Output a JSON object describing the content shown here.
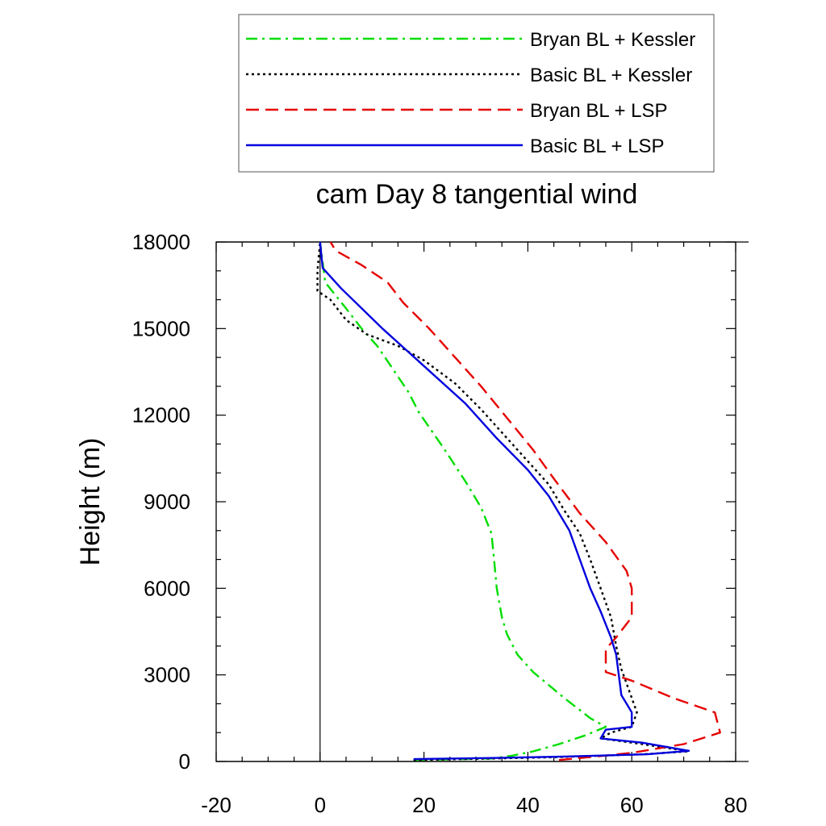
{
  "chart_data": {
    "type": "line",
    "title": "cam Day 8 tangential wind",
    "xlabel": "",
    "ylabel": "Height (m)",
    "xlim": [
      -20,
      80
    ],
    "ylim": [
      0,
      18000
    ],
    "x_ticks": [
      -20,
      0,
      20,
      40,
      60,
      80
    ],
    "y_ticks": [
      0,
      3000,
      6000,
      9000,
      12000,
      15000,
      18000
    ],
    "x_tick_labels": [
      "-20",
      "0",
      "20",
      "40",
      "60",
      "80"
    ],
    "y_tick_labels": [
      "0",
      "3000",
      "6000",
      "9000",
      "12000",
      "15000",
      "18000"
    ],
    "grid": false,
    "legend_position": "top",
    "series": [
      {
        "name": "Bryan BL + Kessler",
        "color": "#00dd00",
        "style": "dash-dot",
        "points": [
          [
            18,
            50
          ],
          [
            33,
            100
          ],
          [
            37,
            200
          ],
          [
            41,
            350
          ],
          [
            46,
            600
          ],
          [
            51,
            900
          ],
          [
            55,
            1200
          ],
          [
            52,
            1500
          ],
          [
            47,
            2200
          ],
          [
            41,
            3100
          ],
          [
            38,
            3700
          ],
          [
            36,
            4400
          ],
          [
            35,
            5000
          ],
          [
            34,
            6000
          ],
          [
            33.5,
            7000
          ],
          [
            33,
            7900
          ],
          [
            31,
            8800
          ],
          [
            28,
            9700
          ],
          [
            24,
            10800
          ],
          [
            19,
            12100
          ],
          [
            17,
            12800
          ],
          [
            14,
            13600
          ],
          [
            11,
            14400
          ],
          [
            8,
            15000
          ],
          [
            5,
            15700
          ],
          [
            1,
            16600
          ],
          [
            0.5,
            17300
          ],
          [
            0,
            18000
          ]
        ]
      },
      {
        "name": "Basic BL + Kessler",
        "color": "#000000",
        "style": "dotted",
        "points": [
          [
            18,
            50
          ],
          [
            33,
            100
          ],
          [
            46,
            150
          ],
          [
            62,
            250
          ],
          [
            71,
            350
          ],
          [
            62,
            600
          ],
          [
            54,
            800
          ],
          [
            56,
            1000
          ],
          [
            60,
            1200
          ],
          [
            61,
            1700
          ],
          [
            60,
            2200
          ],
          [
            59,
            2700
          ],
          [
            58,
            3200
          ],
          [
            57,
            4000
          ],
          [
            56,
            5000
          ],
          [
            54,
            6000
          ],
          [
            52,
            7000
          ],
          [
            50,
            7900
          ],
          [
            47,
            8700
          ],
          [
            44,
            9600
          ],
          [
            40,
            10400
          ],
          [
            36,
            11200
          ],
          [
            31,
            12200
          ],
          [
            26,
            13100
          ],
          [
            20,
            13900
          ],
          [
            15,
            14400
          ],
          [
            9,
            14800
          ],
          [
            5,
            15300
          ],
          [
            2,
            16000
          ],
          [
            -0.5,
            16300
          ],
          [
            -0.5,
            17000
          ],
          [
            0,
            18000
          ]
        ]
      },
      {
        "name": "Bryan BL + LSP",
        "color": "#e60000",
        "style": "dashed",
        "points": [
          [
            46,
            50
          ],
          [
            52,
            150
          ],
          [
            60,
            300
          ],
          [
            70,
            600
          ],
          [
            77,
            1000
          ],
          [
            76,
            1700
          ],
          [
            68,
            2200
          ],
          [
            60,
            2800
          ],
          [
            55,
            3100
          ],
          [
            55,
            3900
          ],
          [
            57,
            4300
          ],
          [
            60,
            5000
          ],
          [
            60,
            6000
          ],
          [
            59,
            6600
          ],
          [
            55,
            7600
          ],
          [
            50,
            8600
          ],
          [
            45,
            9800
          ],
          [
            41,
            10800
          ],
          [
            36,
            11900
          ],
          [
            31,
            13000
          ],
          [
            26,
            14000
          ],
          [
            21,
            15000
          ],
          [
            16,
            15900
          ],
          [
            13,
            16600
          ],
          [
            8,
            17200
          ],
          [
            3,
            17700
          ],
          [
            2,
            18000
          ]
        ]
      },
      {
        "name": "Basic BL + LSP",
        "color": "#0000dd",
        "style": "solid",
        "points": [
          [
            18,
            80
          ],
          [
            33,
            120
          ],
          [
            47,
            170
          ],
          [
            63,
            250
          ],
          [
            71,
            370
          ],
          [
            62,
            650
          ],
          [
            54,
            800
          ],
          [
            55,
            1100
          ],
          [
            60,
            1200
          ],
          [
            60,
            1700
          ],
          [
            59,
            2000
          ],
          [
            58,
            2300
          ],
          [
            57.5,
            3000
          ],
          [
            57,
            3700
          ],
          [
            56,
            4300
          ],
          [
            54,
            5200
          ],
          [
            52,
            6000
          ],
          [
            50,
            7000
          ],
          [
            48,
            8000
          ],
          [
            44,
            9200
          ],
          [
            40,
            10100
          ],
          [
            34,
            11200
          ],
          [
            28,
            12400
          ],
          [
            20,
            13700
          ],
          [
            12,
            15000
          ],
          [
            4,
            16400
          ],
          [
            0.5,
            17100
          ],
          [
            0,
            18000
          ]
        ]
      }
    ]
  }
}
